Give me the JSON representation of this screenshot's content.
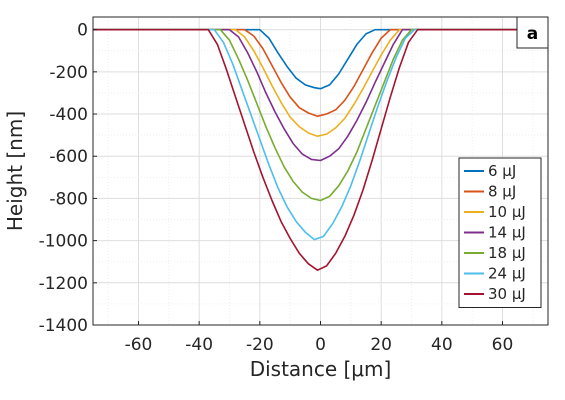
{
  "chart_data": {
    "type": "line",
    "panel_label": "a",
    "xlabel": "Distance [μm]",
    "ylabel": "Height [nm]",
    "xlim": [
      -75,
      75
    ],
    "ylim": [
      -1400,
      60
    ],
    "xticks": [
      -60,
      -40,
      -20,
      0,
      20,
      40,
      60
    ],
    "yticks": [
      0,
      -200,
      -400,
      -600,
      -800,
      -1000,
      -1200,
      -1400
    ],
    "grid": true,
    "legend_position": "bottom-right",
    "series": [
      {
        "name": "6 μJ",
        "color": "#0072BD",
        "x": [
          -75,
          -20,
          -17,
          -14,
          -11,
          -8,
          -5,
          -2,
          0,
          3,
          6,
          9,
          12,
          15,
          18,
          75
        ],
        "y": [
          0,
          0,
          -40,
          -110,
          -175,
          -230,
          -262,
          -275,
          -280,
          -262,
          -210,
          -140,
          -70,
          -20,
          0,
          0
        ]
      },
      {
        "name": "8 μJ",
        "color": "#D95319",
        "x": [
          -75,
          -25,
          -22,
          -19,
          -16,
          -13,
          -10,
          -7,
          -4,
          -1,
          2,
          5,
          8,
          11,
          14,
          17,
          20,
          23,
          75
        ],
        "y": [
          0,
          0,
          -30,
          -90,
          -170,
          -250,
          -320,
          -370,
          -395,
          -410,
          -400,
          -380,
          -335,
          -270,
          -190,
          -110,
          -40,
          0,
          0
        ]
      },
      {
        "name": "10 μJ",
        "color": "#EDB120",
        "x": [
          -75,
          -28,
          -25,
          -22,
          -19,
          -16,
          -13,
          -10,
          -7,
          -4,
          -1,
          2,
          5,
          8,
          11,
          14,
          17,
          20,
          23,
          26,
          75
        ],
        "y": [
          0,
          0,
          -35,
          -100,
          -180,
          -265,
          -345,
          -415,
          -460,
          -490,
          -505,
          -495,
          -465,
          -420,
          -355,
          -280,
          -200,
          -120,
          -50,
          0,
          0
        ]
      },
      {
        "name": "14 μJ",
        "color": "#7E2F8E",
        "x": [
          -75,
          -30,
          -27,
          -24,
          -21,
          -18,
          -15,
          -12,
          -9,
          -6,
          -3,
          0,
          3,
          6,
          9,
          12,
          15,
          18,
          21,
          24,
          27,
          75
        ],
        "y": [
          0,
          0,
          -35,
          -110,
          -200,
          -300,
          -390,
          -470,
          -540,
          -590,
          -615,
          -620,
          -600,
          -565,
          -505,
          -430,
          -345,
          -250,
          -160,
          -70,
          0,
          0
        ]
      },
      {
        "name": "18 μJ",
        "color": "#77AC30",
        "x": [
          -75,
          -33,
          -30,
          -27,
          -24,
          -21,
          -18,
          -15,
          -12,
          -9,
          -6,
          -3,
          0,
          3,
          6,
          9,
          12,
          15,
          18,
          21,
          24,
          27,
          30,
          75
        ],
        "y": [
          0,
          0,
          -50,
          -140,
          -240,
          -350,
          -460,
          -560,
          -650,
          -720,
          -770,
          -800,
          -810,
          -790,
          -740,
          -670,
          -580,
          -470,
          -360,
          -250,
          -140,
          -50,
          0,
          0
        ]
      },
      {
        "name": "24 μJ",
        "color": "#4DBEEE",
        "x": [
          -75,
          -35,
          -32,
          -29,
          -26,
          -23,
          -20,
          -17,
          -14,
          -11,
          -8,
          -5,
          -2,
          1,
          4,
          7,
          10,
          13,
          16,
          19,
          22,
          25,
          28,
          31,
          75
        ],
        "y": [
          0,
          0,
          -60,
          -160,
          -280,
          -400,
          -520,
          -640,
          -750,
          -840,
          -910,
          -960,
          -995,
          -980,
          -920,
          -840,
          -740,
          -620,
          -490,
          -360,
          -240,
          -130,
          -40,
          0,
          0
        ]
      },
      {
        "name": "30 μJ",
        "color": "#A2142F",
        "x": [
          -75,
          -37,
          -34,
          -31,
          -28,
          -25,
          -22,
          -19,
          -16,
          -13,
          -10,
          -7,
          -4,
          -1,
          2,
          5,
          8,
          11,
          14,
          17,
          20,
          23,
          26,
          29,
          32,
          75
        ],
        "y": [
          0,
          0,
          -70,
          -190,
          -320,
          -450,
          -580,
          -700,
          -810,
          -910,
          -990,
          -1060,
          -1110,
          -1140,
          -1120,
          -1060,
          -980,
          -880,
          -760,
          -620,
          -470,
          -320,
          -180,
          -60,
          0,
          0
        ]
      }
    ]
  }
}
